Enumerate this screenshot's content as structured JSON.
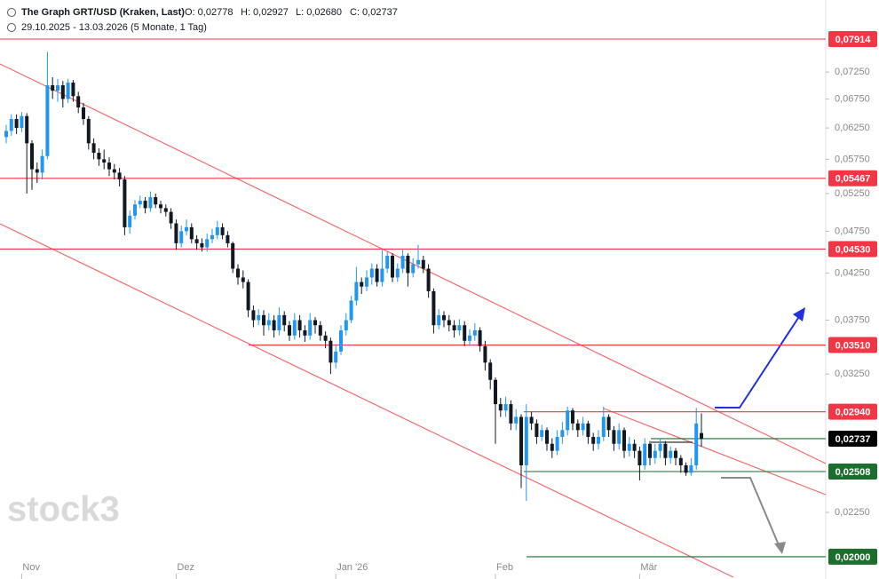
{
  "header": {
    "title": "The Graph GRT/USD (Kraken, Last)",
    "ohlc": [
      "O: 0,02778",
      "H: 0,02927",
      "L: 0,02680",
      "C: 0,02737"
    ],
    "range": "29.10.2025 - 13.03.2026 (5 Monate, 1 Tag)"
  },
  "watermark": "stock3",
  "chart_data": {
    "type": "candlestick",
    "log_scale": true,
    "up_color": "#2196f3",
    "down_color": "#131722",
    "ylim": [
      0.01894,
      0.0878
    ],
    "yticks": [
      {
        "value": 0.0725,
        "label": "0,07250"
      },
      {
        "value": 0.0675,
        "label": "0,06750"
      },
      {
        "value": 0.0625,
        "label": "0,06250"
      },
      {
        "value": 0.0575,
        "label": "0,05750"
      },
      {
        "value": 0.0525,
        "label": "0,05250"
      },
      {
        "value": 0.0475,
        "label": "0,04750"
      },
      {
        "value": 0.0425,
        "label": "0,04250"
      },
      {
        "value": 0.0375,
        "label": "0,03750"
      },
      {
        "value": 0.0325,
        "label": "0,03250"
      },
      {
        "value": 0.0225,
        "label": "0,02250"
      }
    ],
    "xticks": [
      {
        "value": 3,
        "label": "Nov"
      },
      {
        "value": 33,
        "label": "Dez"
      },
      {
        "value": 64,
        "label": "Jan '26"
      },
      {
        "value": 95,
        "label": "Feb"
      },
      {
        "value": 123,
        "label": "Mär"
      }
    ],
    "levels": [
      {
        "value": 0.07914,
        "label": "0,07914",
        "color": "#f23645"
      },
      {
        "value": 0.05467,
        "label": "0,05467",
        "color": "#f23645"
      },
      {
        "value": 0.0453,
        "label": "0,04530",
        "color": "#f23645"
      },
      {
        "value": 0.0351,
        "label": "0,03510",
        "color": "#f23645"
      },
      {
        "value": 0.0294,
        "label": "0,02940",
        "color": "#f23645"
      },
      {
        "value": 0.02737,
        "label": "0,02737",
        "color": "#000000"
      },
      {
        "value": 0.02508,
        "label": "0,02508",
        "color": "#1b6e2b"
      },
      {
        "value": 0.02,
        "label": "0,02000",
        "color": "#1b6e2b"
      }
    ],
    "candles": [
      [
        0.061,
        0.063,
        0.06,
        0.062
      ],
      [
        0.062,
        0.0648,
        0.0612,
        0.064
      ],
      [
        0.064,
        0.0648,
        0.0615,
        0.0625
      ],
      [
        0.0625,
        0.0652,
        0.0618,
        0.0645
      ],
      [
        0.0645,
        0.065,
        0.0525,
        0.06
      ],
      [
        0.06,
        0.0605,
        0.053,
        0.056
      ],
      [
        0.056,
        0.057,
        0.054,
        0.0555
      ],
      [
        0.0555,
        0.059,
        0.0545,
        0.058
      ],
      [
        0.058,
        0.0765,
        0.0575,
        0.07
      ],
      [
        0.07,
        0.0715,
        0.0675,
        0.069
      ],
      [
        0.069,
        0.0712,
        0.067,
        0.07
      ],
      [
        0.07,
        0.0708,
        0.066,
        0.0675
      ],
      [
        0.0675,
        0.0712,
        0.0668,
        0.0705
      ],
      [
        0.0705,
        0.071,
        0.067,
        0.068
      ],
      [
        0.068,
        0.0688,
        0.065,
        0.066
      ],
      [
        0.066,
        0.0668,
        0.063,
        0.064
      ],
      [
        0.064,
        0.0645,
        0.059,
        0.06
      ],
      [
        0.06,
        0.0608,
        0.0575,
        0.0585
      ],
      [
        0.0585,
        0.0592,
        0.0565,
        0.0575
      ],
      [
        0.0575,
        0.059,
        0.056,
        0.057
      ],
      [
        0.057,
        0.0578,
        0.055,
        0.056
      ],
      [
        0.056,
        0.0568,
        0.0545,
        0.0555
      ],
      [
        0.0555,
        0.0562,
        0.0535,
        0.0545
      ],
      [
        0.0545,
        0.055,
        0.047,
        0.048
      ],
      [
        0.048,
        0.0502,
        0.0472,
        0.0495
      ],
      [
        0.0495,
        0.0516,
        0.049,
        0.051
      ],
      [
        0.051,
        0.0522,
        0.0505,
        0.0515
      ],
      [
        0.0515,
        0.052,
        0.0498,
        0.0505
      ],
      [
        0.0505,
        0.0528,
        0.05,
        0.052
      ],
      [
        0.052,
        0.0525,
        0.0505,
        0.051
      ],
      [
        0.051,
        0.0515,
        0.0498,
        0.0505
      ],
      [
        0.0505,
        0.051,
        0.0494,
        0.05
      ],
      [
        0.05,
        0.0505,
        0.0478,
        0.0485
      ],
      [
        0.0485,
        0.049,
        0.0452,
        0.046
      ],
      [
        0.046,
        0.0482,
        0.0455,
        0.0475
      ],
      [
        0.0475,
        0.049,
        0.047,
        0.048
      ],
      [
        0.048,
        0.0485,
        0.046,
        0.0465
      ],
      [
        0.0465,
        0.047,
        0.0452,
        0.046
      ],
      [
        0.046,
        0.0466,
        0.045,
        0.0455
      ],
      [
        0.0455,
        0.0472,
        0.045,
        0.0465
      ],
      [
        0.0465,
        0.0478,
        0.046,
        0.047
      ],
      [
        0.047,
        0.0488,
        0.0465,
        0.048
      ],
      [
        0.048,
        0.0485,
        0.0465,
        0.047
      ],
      [
        0.047,
        0.0475,
        0.0455,
        0.046
      ],
      [
        0.046,
        0.0462,
        0.0425,
        0.043
      ],
      [
        0.043,
        0.0435,
        0.0412,
        0.042
      ],
      [
        0.042,
        0.0428,
        0.0408,
        0.0415
      ],
      [
        0.0415,
        0.0418,
        0.0378,
        0.0385
      ],
      [
        0.0385,
        0.039,
        0.0368,
        0.0375
      ],
      [
        0.0375,
        0.0386,
        0.037,
        0.038
      ],
      [
        0.038,
        0.0385,
        0.036,
        0.037
      ],
      [
        0.037,
        0.0382,
        0.0365,
        0.0375
      ],
      [
        0.0375,
        0.038,
        0.0358,
        0.0365
      ],
      [
        0.0365,
        0.0388,
        0.036,
        0.038
      ],
      [
        0.038,
        0.0384,
        0.0364,
        0.037
      ],
      [
        0.037,
        0.0374,
        0.0355,
        0.036
      ],
      [
        0.036,
        0.0382,
        0.0356,
        0.0375
      ],
      [
        0.0375,
        0.038,
        0.0358,
        0.0365
      ],
      [
        0.0365,
        0.037,
        0.0354,
        0.036
      ],
      [
        0.036,
        0.0382,
        0.0356,
        0.0375
      ],
      [
        0.0375,
        0.0378,
        0.0362,
        0.037
      ],
      [
        0.037,
        0.0374,
        0.0355,
        0.036
      ],
      [
        0.036,
        0.0364,
        0.0348,
        0.0355
      ],
      [
        0.0355,
        0.0358,
        0.0325,
        0.0335
      ],
      [
        0.0335,
        0.0352,
        0.033,
        0.0345
      ],
      [
        0.0345,
        0.037,
        0.0342,
        0.0365
      ],
      [
        0.0365,
        0.0382,
        0.036,
        0.0375
      ],
      [
        0.0375,
        0.04,
        0.0372,
        0.0395
      ],
      [
        0.0395,
        0.0432,
        0.039,
        0.0415
      ],
      [
        0.0415,
        0.042,
        0.0402,
        0.041
      ],
      [
        0.041,
        0.0428,
        0.0405,
        0.042
      ],
      [
        0.042,
        0.0436,
        0.0412,
        0.043
      ],
      [
        0.043,
        0.0435,
        0.041,
        0.0415
      ],
      [
        0.0415,
        0.0452,
        0.041,
        0.043
      ],
      [
        0.043,
        0.045,
        0.0425,
        0.0445
      ],
      [
        0.0445,
        0.0448,
        0.0415,
        0.042
      ],
      [
        0.042,
        0.0436,
        0.0415,
        0.043
      ],
      [
        0.043,
        0.0452,
        0.0425,
        0.0445
      ],
      [
        0.0445,
        0.0448,
        0.041,
        0.0425
      ],
      [
        0.0425,
        0.0442,
        0.042,
        0.0435
      ],
      [
        0.0435,
        0.0458,
        0.043,
        0.044
      ],
      [
        0.044,
        0.0445,
        0.0425,
        0.043
      ],
      [
        0.043,
        0.0435,
        0.0398,
        0.0405
      ],
      [
        0.0405,
        0.0408,
        0.0362,
        0.037
      ],
      [
        0.037,
        0.0386,
        0.0366,
        0.038
      ],
      [
        0.038,
        0.0384,
        0.0368,
        0.0375
      ],
      [
        0.0375,
        0.038,
        0.0364,
        0.037
      ],
      [
        0.037,
        0.0375,
        0.0358,
        0.0365
      ],
      [
        0.0365,
        0.0376,
        0.036,
        0.037
      ],
      [
        0.037,
        0.0374,
        0.035,
        0.0355
      ],
      [
        0.0355,
        0.0366,
        0.035,
        0.036
      ],
      [
        0.036,
        0.0372,
        0.0355,
        0.0365
      ],
      [
        0.0365,
        0.0368,
        0.0345,
        0.035
      ],
      [
        0.035,
        0.0355,
        0.0328,
        0.0335
      ],
      [
        0.0335,
        0.0338,
        0.0312,
        0.032
      ],
      [
        0.032,
        0.0322,
        0.027,
        0.03
      ],
      [
        0.03,
        0.0305,
        0.029,
        0.0295
      ],
      [
        0.0295,
        0.0306,
        0.029,
        0.03
      ],
      [
        0.03,
        0.0303,
        0.028,
        0.0285
      ],
      [
        0.0285,
        0.0296,
        0.028,
        0.029
      ],
      [
        0.029,
        0.0292,
        0.024,
        0.0255
      ],
      [
        0.0255,
        0.03,
        0.0232,
        0.029
      ],
      [
        0.029,
        0.0294,
        0.028,
        0.0285
      ],
      [
        0.0285,
        0.0288,
        0.027,
        0.0275
      ],
      [
        0.0275,
        0.0284,
        0.0272,
        0.028
      ],
      [
        0.028,
        0.0282,
        0.0265,
        0.027
      ],
      [
        0.027,
        0.0274,
        0.026,
        0.0265
      ],
      [
        0.0265,
        0.028,
        0.0262,
        0.0275
      ],
      [
        0.0275,
        0.0286,
        0.027,
        0.028
      ],
      [
        0.028,
        0.0298,
        0.0276,
        0.0295
      ],
      [
        0.0295,
        0.0297,
        0.028,
        0.0285
      ],
      [
        0.0285,
        0.0288,
        0.0275,
        0.028
      ],
      [
        0.028,
        0.029,
        0.0276,
        0.0285
      ],
      [
        0.0285,
        0.0287,
        0.027,
        0.0275
      ],
      [
        0.0275,
        0.0278,
        0.0265,
        0.027
      ],
      [
        0.027,
        0.028,
        0.0266,
        0.0275
      ],
      [
        0.0275,
        0.0298,
        0.0272,
        0.029
      ],
      [
        0.029,
        0.0292,
        0.0275,
        0.028
      ],
      [
        0.028,
        0.0283,
        0.0265,
        0.027
      ],
      [
        0.027,
        0.0285,
        0.0266,
        0.028
      ],
      [
        0.028,
        0.0282,
        0.026,
        0.0265
      ],
      [
        0.0265,
        0.0275,
        0.0261,
        0.027
      ],
      [
        0.027,
        0.0273,
        0.026,
        0.0265
      ],
      [
        0.0265,
        0.0268,
        0.0245,
        0.0255
      ],
      [
        0.0255,
        0.0274,
        0.0252,
        0.027
      ],
      [
        0.027,
        0.0272,
        0.0255,
        0.026
      ],
      [
        0.026,
        0.027,
        0.0256,
        0.0265
      ],
      [
        0.0265,
        0.0274,
        0.026,
        0.027
      ],
      [
        0.027,
        0.0272,
        0.0255,
        0.026
      ],
      [
        0.026,
        0.0268,
        0.0256,
        0.0265
      ],
      [
        0.0265,
        0.0267,
        0.0255,
        0.026
      ],
      [
        0.026,
        0.0262,
        0.025,
        0.0255
      ],
      [
        0.0255,
        0.0257,
        0.0248,
        0.025
      ],
      [
        0.025,
        0.026,
        0.0248,
        0.0255
      ],
      [
        0.0255,
        0.0297,
        0.0252,
        0.0285
      ],
      [
        0.02778,
        0.02927,
        0.0268,
        0.02737
      ]
    ]
  }
}
